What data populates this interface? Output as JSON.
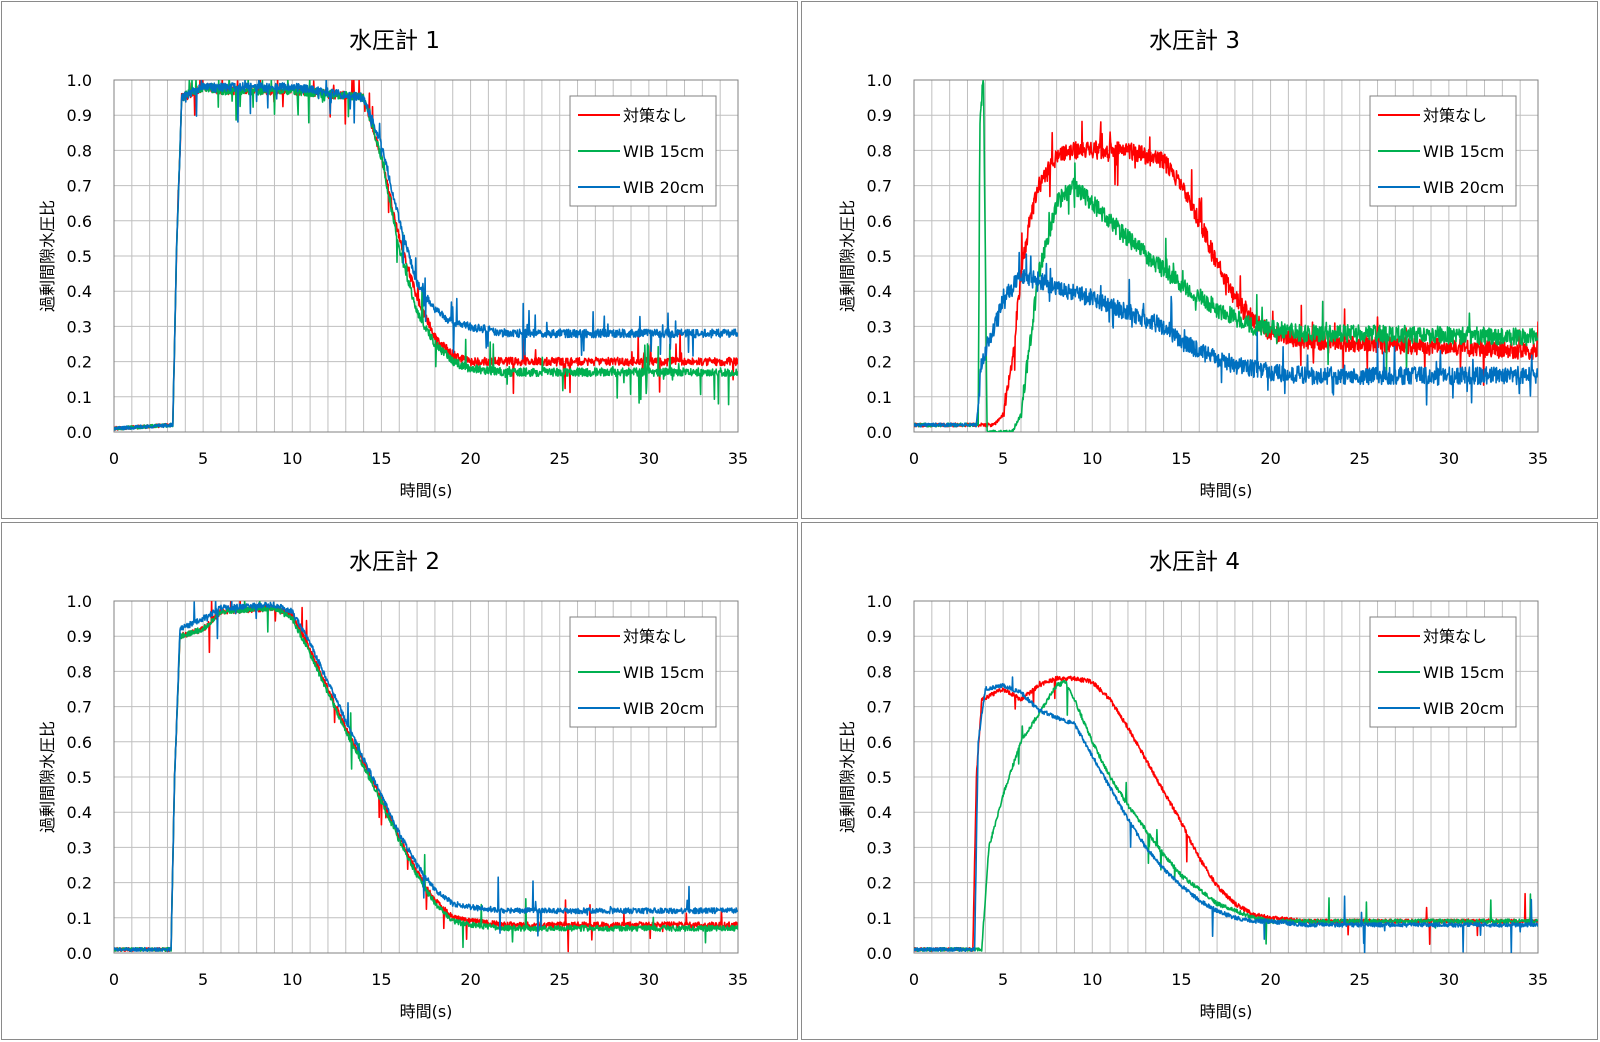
{
  "colors": {
    "series_1": "#ff0000",
    "series_2": "#00b050",
    "series_3": "#0070c0",
    "grid": "#bfbfbf",
    "axis": "#808080"
  },
  "chart_data": [
    {
      "type": "line",
      "title": "水圧計 1",
      "xlabel": "時間(s)",
      "ylabel": "過剰間隙水圧比",
      "xlim": [
        0,
        35
      ],
      "ylim": [
        0,
        1.0
      ],
      "xticks": [
        "0",
        "5",
        "10",
        "15",
        "20",
        "25",
        "30",
        "35"
      ],
      "yticks": [
        "0.0",
        "0.1",
        "0.2",
        "0.3",
        "0.4",
        "0.5",
        "0.6",
        "0.7",
        "0.8",
        "0.9",
        "1.0"
      ],
      "grid": true,
      "legend": "top-right",
      "series": [
        {
          "name": "対策なし",
          "color": "#ff0000",
          "noise": 0.012,
          "spikes": 0.05,
          "x": [
            0,
            3.3,
            3.5,
            3.8,
            5,
            6,
            10,
            14,
            15,
            16,
            17,
            18,
            19,
            20,
            22,
            35
          ],
          "y": [
            0.01,
            0.02,
            0.5,
            0.95,
            0.98,
            0.97,
            0.97,
            0.95,
            0.78,
            0.55,
            0.38,
            0.27,
            0.22,
            0.2,
            0.2,
            0.2
          ]
        },
        {
          "name": "WIB 15cm",
          "color": "#00b050",
          "noise": 0.012,
          "spikes": 0.06,
          "x": [
            0,
            3.3,
            3.5,
            3.8,
            5,
            6,
            10,
            14,
            15,
            16,
            17,
            18,
            19,
            20,
            22,
            35
          ],
          "y": [
            0.01,
            0.02,
            0.5,
            0.95,
            0.98,
            0.97,
            0.97,
            0.95,
            0.78,
            0.52,
            0.34,
            0.25,
            0.2,
            0.18,
            0.17,
            0.17
          ]
        },
        {
          "name": "WIB 20cm",
          "color": "#0070c0",
          "noise": 0.012,
          "spikes": 0.05,
          "x": [
            0,
            3.3,
            3.5,
            3.8,
            5,
            6,
            10,
            14,
            15,
            16,
            17,
            18,
            19,
            20,
            22,
            35
          ],
          "y": [
            0.01,
            0.02,
            0.5,
            0.95,
            0.98,
            0.98,
            0.98,
            0.95,
            0.82,
            0.6,
            0.42,
            0.35,
            0.31,
            0.3,
            0.28,
            0.28
          ]
        }
      ]
    },
    {
      "type": "line",
      "title": "水圧計 3",
      "xlabel": "時間(s)",
      "ylabel": "過剰間隙水圧比",
      "xlim": [
        0,
        35
      ],
      "ylim": [
        0,
        1.0
      ],
      "xticks": [
        "0",
        "5",
        "10",
        "15",
        "20",
        "25",
        "30",
        "35"
      ],
      "yticks": [
        "0.0",
        "0.1",
        "0.2",
        "0.3",
        "0.4",
        "0.5",
        "0.6",
        "0.7",
        "0.8",
        "0.9",
        "1.0"
      ],
      "grid": true,
      "legend": "top-right",
      "series": [
        {
          "name": "対策なし",
          "color": "#ff0000",
          "noise": 0.025,
          "spikes": 0.04,
          "x": [
            0,
            4.5,
            5,
            5.5,
            6,
            6.5,
            7,
            8,
            9,
            10,
            12,
            14,
            15,
            16,
            17,
            18,
            19,
            20,
            22,
            25,
            35
          ],
          "y": [
            0.02,
            0.02,
            0.05,
            0.2,
            0.45,
            0.6,
            0.7,
            0.78,
            0.8,
            0.8,
            0.8,
            0.77,
            0.7,
            0.6,
            0.48,
            0.38,
            0.32,
            0.28,
            0.26,
            0.25,
            0.23
          ]
        },
        {
          "name": "WIB 15cm",
          "color": "#00b050",
          "noise": 0.025,
          "spikes": 0.04,
          "x": [
            0,
            3.6,
            3.7,
            3.9,
            4.1,
            4.5,
            5.5,
            6,
            6.5,
            7,
            8,
            9,
            10,
            12,
            14,
            15,
            17,
            19,
            22,
            25,
            35
          ],
          "y": [
            0.02,
            0.02,
            0.9,
            1.0,
            0.0,
            0.0,
            0.0,
            0.05,
            0.25,
            0.45,
            0.65,
            0.7,
            0.65,
            0.55,
            0.46,
            0.42,
            0.35,
            0.3,
            0.28,
            0.28,
            0.27
          ]
        },
        {
          "name": "WIB 20cm",
          "color": "#0070c0",
          "noise": 0.025,
          "spikes": 0.05,
          "x": [
            0,
            3.5,
            3.8,
            4.5,
            5,
            6,
            7,
            8,
            10,
            12,
            14,
            15,
            16,
            17,
            18,
            20,
            22,
            25,
            35
          ],
          "y": [
            0.02,
            0.02,
            0.2,
            0.3,
            0.38,
            0.44,
            0.43,
            0.41,
            0.38,
            0.34,
            0.3,
            0.26,
            0.23,
            0.21,
            0.19,
            0.17,
            0.16,
            0.16,
            0.16
          ]
        }
      ]
    },
    {
      "type": "line",
      "title": "水圧計 2",
      "xlabel": "時間(s)",
      "ylabel": "過剰間隙水圧比",
      "xlim": [
        0,
        35
      ],
      "ylim": [
        0,
        1.0
      ],
      "xticks": [
        "0",
        "5",
        "10",
        "15",
        "20",
        "25",
        "30",
        "35"
      ],
      "yticks": [
        "0.0",
        "0.1",
        "0.2",
        "0.3",
        "0.4",
        "0.5",
        "0.6",
        "0.7",
        "0.8",
        "0.9",
        "1.0"
      ],
      "grid": true,
      "legend": "top-right",
      "series": [
        {
          "name": "対策なし",
          "color": "#ff0000",
          "noise": 0.008,
          "spikes": 0.02,
          "x": [
            0,
            3.2,
            3.4,
            3.7,
            5,
            6,
            9,
            10,
            11,
            12,
            13,
            14,
            15,
            16,
            17,
            18,
            19,
            20,
            22,
            25,
            35
          ],
          "y": [
            0.01,
            0.01,
            0.5,
            0.9,
            0.92,
            0.97,
            0.98,
            0.96,
            0.86,
            0.75,
            0.64,
            0.54,
            0.44,
            0.33,
            0.23,
            0.15,
            0.1,
            0.09,
            0.08,
            0.08,
            0.08
          ]
        },
        {
          "name": "WIB 15cm",
          "color": "#00b050",
          "noise": 0.008,
          "spikes": 0.02,
          "x": [
            0,
            3.2,
            3.4,
            3.7,
            5,
            6,
            9,
            10,
            11,
            12,
            13,
            14,
            15,
            16,
            17,
            18,
            19,
            20,
            22,
            25,
            35
          ],
          "y": [
            0.01,
            0.01,
            0.5,
            0.9,
            0.92,
            0.97,
            0.98,
            0.95,
            0.85,
            0.74,
            0.63,
            0.53,
            0.43,
            0.32,
            0.22,
            0.14,
            0.09,
            0.08,
            0.07,
            0.07,
            0.07
          ]
        },
        {
          "name": "WIB 20cm",
          "color": "#0070c0",
          "noise": 0.008,
          "spikes": 0.02,
          "x": [
            0,
            3.2,
            3.4,
            3.7,
            5,
            6,
            9,
            10,
            11,
            12,
            13,
            14,
            15,
            16,
            17,
            18,
            19,
            20,
            22,
            25,
            35
          ],
          "y": [
            0.01,
            0.01,
            0.5,
            0.92,
            0.95,
            0.98,
            0.99,
            0.97,
            0.88,
            0.77,
            0.66,
            0.55,
            0.45,
            0.34,
            0.25,
            0.18,
            0.14,
            0.13,
            0.12,
            0.12,
            0.12
          ]
        }
      ]
    },
    {
      "type": "line",
      "title": "水圧計 4",
      "xlabel": "時間(s)",
      "ylabel": "過剰間隙水圧比",
      "xlim": [
        0,
        35
      ],
      "ylim": [
        0,
        1.0
      ],
      "xticks": [
        "0",
        "5",
        "10",
        "15",
        "20",
        "25",
        "30",
        "35"
      ],
      "yticks": [
        "0.0",
        "0.1",
        "0.2",
        "0.3",
        "0.4",
        "0.5",
        "0.6",
        "0.7",
        "0.8",
        "0.9",
        "1.0"
      ],
      "grid": true,
      "legend": "top-right",
      "series": [
        {
          "name": "対策なし",
          "color": "#ff0000",
          "noise": 0.006,
          "spikes": 0.01,
          "x": [
            0,
            3.3,
            3.5,
            3.8,
            5,
            6,
            7,
            8,
            9,
            10,
            11,
            12,
            13,
            14,
            15,
            16,
            17,
            18,
            19,
            20,
            22,
            25,
            35
          ],
          "y": [
            0.01,
            0.01,
            0.5,
            0.72,
            0.75,
            0.72,
            0.76,
            0.78,
            0.78,
            0.77,
            0.72,
            0.64,
            0.55,
            0.46,
            0.37,
            0.27,
            0.19,
            0.14,
            0.11,
            0.1,
            0.09,
            0.09,
            0.09
          ]
        },
        {
          "name": "WIB 15cm",
          "color": "#00b050",
          "noise": 0.006,
          "spikes": 0.01,
          "x": [
            0,
            3.8,
            4.2,
            5,
            6,
            7,
            8,
            8.5,
            9,
            10,
            11,
            12,
            13,
            14,
            15,
            16,
            17,
            18,
            19,
            20,
            22,
            25,
            35
          ],
          "y": [
            0.01,
            0.01,
            0.3,
            0.45,
            0.6,
            0.68,
            0.76,
            0.77,
            0.72,
            0.6,
            0.5,
            0.42,
            0.35,
            0.28,
            0.22,
            0.18,
            0.14,
            0.12,
            0.1,
            0.09,
            0.09,
            0.09,
            0.09
          ]
        },
        {
          "name": "WIB 20cm",
          "color": "#0070c0",
          "noise": 0.006,
          "spikes": 0.01,
          "x": [
            0,
            3.4,
            3.6,
            4,
            5,
            6,
            7,
            8,
            9,
            10,
            11,
            12,
            13,
            14,
            15,
            16,
            17,
            18,
            19,
            20,
            22,
            25,
            35
          ],
          "y": [
            0.01,
            0.01,
            0.6,
            0.75,
            0.76,
            0.74,
            0.69,
            0.67,
            0.65,
            0.56,
            0.47,
            0.38,
            0.3,
            0.24,
            0.19,
            0.15,
            0.12,
            0.1,
            0.09,
            0.09,
            0.08,
            0.08,
            0.08
          ]
        }
      ]
    }
  ]
}
